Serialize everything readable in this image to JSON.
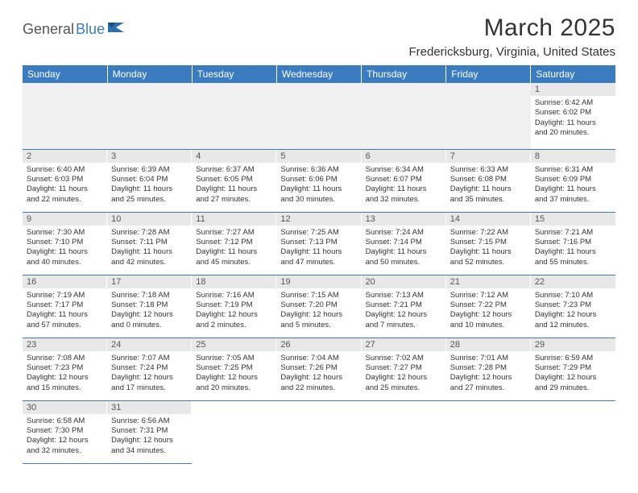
{
  "logo": {
    "part1": "General",
    "part2": "Blue"
  },
  "title": "March 2025",
  "location": "Fredericksburg, Virginia, United States",
  "colors": {
    "header_bg": "#3b7bbf",
    "header_text": "#ffffff",
    "daynum_bg": "#e8e8e8",
    "body_text": "#333333",
    "grid_line": "#3b7bbf"
  },
  "weekdays": [
    "Sunday",
    "Monday",
    "Tuesday",
    "Wednesday",
    "Thursday",
    "Friday",
    "Saturday"
  ],
  "weeks": [
    [
      null,
      null,
      null,
      null,
      null,
      null,
      {
        "n": "1",
        "sunrise": "6:42 AM",
        "sunset": "6:02 PM",
        "day_h": "11",
        "day_m": "20"
      }
    ],
    [
      {
        "n": "2",
        "sunrise": "6:40 AM",
        "sunset": "6:03 PM",
        "day_h": "11",
        "day_m": "22"
      },
      {
        "n": "3",
        "sunrise": "6:39 AM",
        "sunset": "6:04 PM",
        "day_h": "11",
        "day_m": "25"
      },
      {
        "n": "4",
        "sunrise": "6:37 AM",
        "sunset": "6:05 PM",
        "day_h": "11",
        "day_m": "27"
      },
      {
        "n": "5",
        "sunrise": "6:36 AM",
        "sunset": "6:06 PM",
        "day_h": "11",
        "day_m": "30"
      },
      {
        "n": "6",
        "sunrise": "6:34 AM",
        "sunset": "6:07 PM",
        "day_h": "11",
        "day_m": "32"
      },
      {
        "n": "7",
        "sunrise": "6:33 AM",
        "sunset": "6:08 PM",
        "day_h": "11",
        "day_m": "35"
      },
      {
        "n": "8",
        "sunrise": "6:31 AM",
        "sunset": "6:09 PM",
        "day_h": "11",
        "day_m": "37"
      }
    ],
    [
      {
        "n": "9",
        "sunrise": "7:30 AM",
        "sunset": "7:10 PM",
        "day_h": "11",
        "day_m": "40"
      },
      {
        "n": "10",
        "sunrise": "7:28 AM",
        "sunset": "7:11 PM",
        "day_h": "11",
        "day_m": "42"
      },
      {
        "n": "11",
        "sunrise": "7:27 AM",
        "sunset": "7:12 PM",
        "day_h": "11",
        "day_m": "45"
      },
      {
        "n": "12",
        "sunrise": "7:25 AM",
        "sunset": "7:13 PM",
        "day_h": "11",
        "day_m": "47"
      },
      {
        "n": "13",
        "sunrise": "7:24 AM",
        "sunset": "7:14 PM",
        "day_h": "11",
        "day_m": "50"
      },
      {
        "n": "14",
        "sunrise": "7:22 AM",
        "sunset": "7:15 PM",
        "day_h": "11",
        "day_m": "52"
      },
      {
        "n": "15",
        "sunrise": "7:21 AM",
        "sunset": "7:16 PM",
        "day_h": "11",
        "day_m": "55"
      }
    ],
    [
      {
        "n": "16",
        "sunrise": "7:19 AM",
        "sunset": "7:17 PM",
        "day_h": "11",
        "day_m": "57"
      },
      {
        "n": "17",
        "sunrise": "7:18 AM",
        "sunset": "7:18 PM",
        "day_h": "12",
        "day_m": "0"
      },
      {
        "n": "18",
        "sunrise": "7:16 AM",
        "sunset": "7:19 PM",
        "day_h": "12",
        "day_m": "2"
      },
      {
        "n": "19",
        "sunrise": "7:15 AM",
        "sunset": "7:20 PM",
        "day_h": "12",
        "day_m": "5"
      },
      {
        "n": "20",
        "sunrise": "7:13 AM",
        "sunset": "7:21 PM",
        "day_h": "12",
        "day_m": "7"
      },
      {
        "n": "21",
        "sunrise": "7:12 AM",
        "sunset": "7:22 PM",
        "day_h": "12",
        "day_m": "10"
      },
      {
        "n": "22",
        "sunrise": "7:10 AM",
        "sunset": "7:23 PM",
        "day_h": "12",
        "day_m": "12"
      }
    ],
    [
      {
        "n": "23",
        "sunrise": "7:08 AM",
        "sunset": "7:23 PM",
        "day_h": "12",
        "day_m": "15"
      },
      {
        "n": "24",
        "sunrise": "7:07 AM",
        "sunset": "7:24 PM",
        "day_h": "12",
        "day_m": "17"
      },
      {
        "n": "25",
        "sunrise": "7:05 AM",
        "sunset": "7:25 PM",
        "day_h": "12",
        "day_m": "20"
      },
      {
        "n": "26",
        "sunrise": "7:04 AM",
        "sunset": "7:26 PM",
        "day_h": "12",
        "day_m": "22"
      },
      {
        "n": "27",
        "sunrise": "7:02 AM",
        "sunset": "7:27 PM",
        "day_h": "12",
        "day_m": "25"
      },
      {
        "n": "28",
        "sunrise": "7:01 AM",
        "sunset": "7:28 PM",
        "day_h": "12",
        "day_m": "27"
      },
      {
        "n": "29",
        "sunrise": "6:59 AM",
        "sunset": "7:29 PM",
        "day_h": "12",
        "day_m": "29"
      }
    ],
    [
      {
        "n": "30",
        "sunrise": "6:58 AM",
        "sunset": "7:30 PM",
        "day_h": "12",
        "day_m": "32"
      },
      {
        "n": "31",
        "sunrise": "6:56 AM",
        "sunset": "7:31 PM",
        "day_h": "12",
        "day_m": "34"
      },
      null,
      null,
      null,
      null,
      null
    ]
  ],
  "labels": {
    "sunrise": "Sunrise:",
    "sunset": "Sunset:",
    "daylight_prefix": "Daylight:",
    "hours_word": "hours",
    "and_word": "and",
    "minutes_word": "minutes."
  }
}
